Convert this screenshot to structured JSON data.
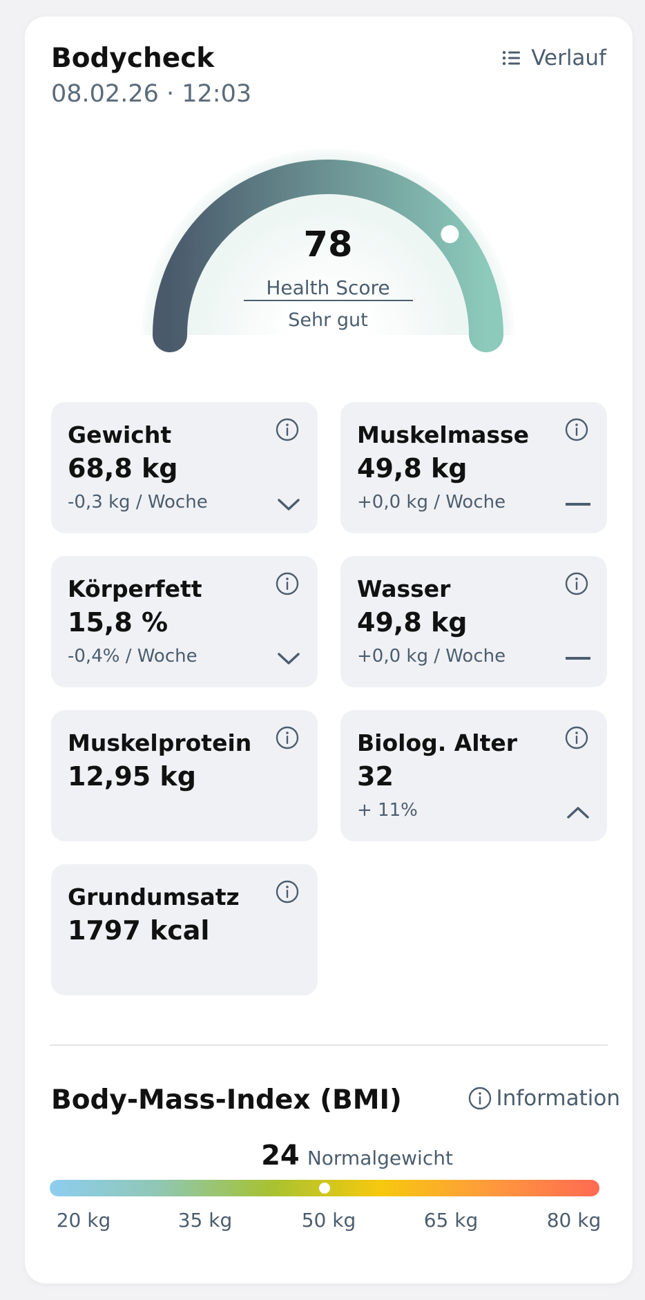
{
  "header": {
    "title": "Bodycheck",
    "timestamp": "08.02.26 · 12:03",
    "history_label": "Verlauf"
  },
  "health_score": {
    "value": "78",
    "label": "Health Score",
    "status": "Sehr gut",
    "progress_fraction": 0.78
  },
  "metrics": [
    {
      "label": "Gewicht",
      "value": "68,8 kg",
      "trend": "-0,3 kg / Woche",
      "direction": "down"
    },
    {
      "label": "Muskelmasse",
      "value": "49,8 kg",
      "trend": "+0,0 kg / Woche",
      "direction": "flat"
    },
    {
      "label": "Körperfett",
      "value": "15,8 %",
      "trend": "-0,4% / Woche",
      "direction": "down"
    },
    {
      "label": "Wasser",
      "value": "49,8 kg",
      "trend": "+0,0 kg / Woche",
      "direction": "flat"
    },
    {
      "label": "Muskelprotein",
      "value": "12,95 kg",
      "trend": "",
      "direction": "none"
    },
    {
      "label": "Biolog. Alter",
      "value": "32",
      "trend": "+ 11%",
      "direction": "up"
    },
    {
      "label": "Grundumsatz",
      "value": "1797 kcal",
      "trend": "",
      "direction": "none"
    }
  ],
  "bmi": {
    "title": "Body-Mass-Index (BMI)",
    "info_label": "Information",
    "value": "24",
    "category": "Normalgewicht",
    "marker_fraction": 0.5,
    "scale_labels": [
      "20 kg",
      "35 kg",
      "50 kg",
      "65 kg",
      "80 kg"
    ]
  },
  "colors": {
    "gauge_start": "#4a5a6b",
    "gauge_end": "#8ccabb",
    "tile_bg": "#f0f1f5",
    "text_muted": "#4b5d6e",
    "bmi_gradient": [
      "#8ecdf0",
      "#8fc7b2",
      "#a6c232",
      "#f6c90e",
      "#ff9a3c",
      "#ff6a52"
    ]
  },
  "icons": {
    "history": "list-icon",
    "info": "info-circle-icon",
    "down": "chevron-down-icon",
    "up": "chevron-up-icon",
    "flat": "dash-icon"
  }
}
